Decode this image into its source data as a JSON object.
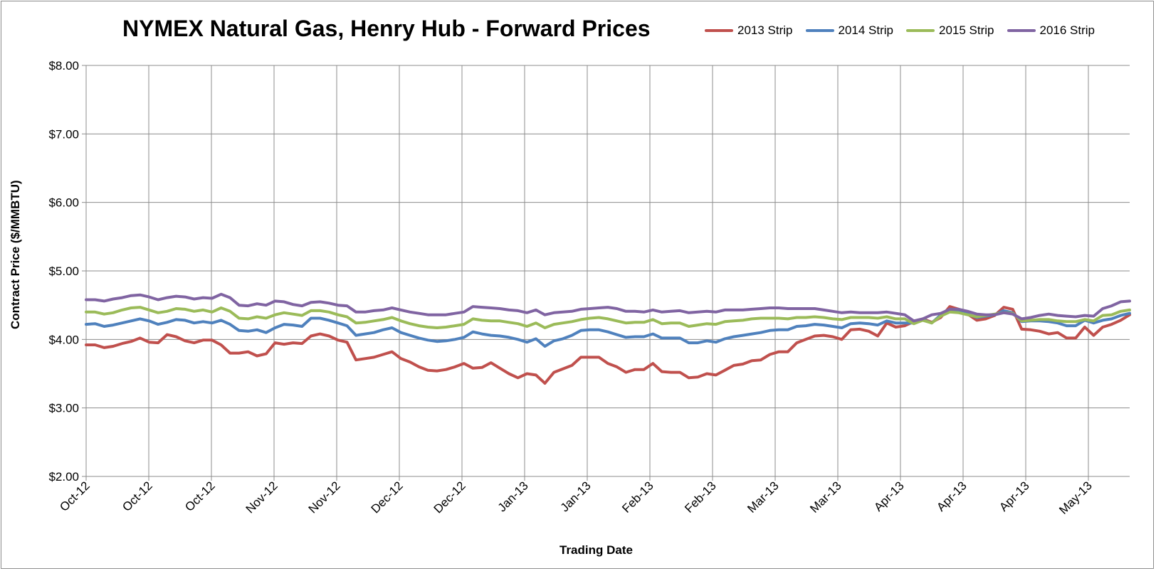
{
  "chart_data": {
    "type": "line",
    "title": "NYMEX Natural Gas, Henry Hub - Forward Prices",
    "xlabel": "Trading Date",
    "ylabel": "Contract Price ($/MMBTU)",
    "ylim": [
      2.0,
      8.0
    ],
    "yticks": [
      "$2.00",
      "$3.00",
      "$4.00",
      "$5.00",
      "$6.00",
      "$7.00",
      "$8.00"
    ],
    "xticks": [
      "Oct-12",
      "Oct-12",
      "Oct-12",
      "Nov-12",
      "Nov-12",
      "Dec-12",
      "Dec-12",
      "Jan-13",
      "Jan-13",
      "Feb-13",
      "Feb-13",
      "Mar-13",
      "Mar-13",
      "Apr-13",
      "Apr-13",
      "Apr-13",
      "May-13"
    ],
    "grid": true,
    "legend_position": "top-right",
    "series": [
      {
        "name": "2013 Strip",
        "color": "#c0504d",
        "values": [
          3.92,
          3.92,
          3.88,
          3.9,
          3.94,
          3.97,
          4.02,
          3.96,
          3.95,
          4.07,
          4.04,
          3.98,
          3.95,
          3.99,
          3.99,
          3.92,
          3.8,
          3.8,
          3.82,
          3.76,
          3.79,
          3.95,
          3.93,
          3.95,
          3.94,
          4.05,
          4.08,
          4.05,
          3.99,
          3.96,
          3.7,
          3.72,
          3.74,
          3.78,
          3.82,
          3.72,
          3.67,
          3.6,
          3.55,
          3.54,
          3.56,
          3.6,
          3.65,
          3.58,
          3.59,
          3.66,
          3.58,
          3.5,
          3.44,
          3.5,
          3.48,
          3.36,
          3.52,
          3.57,
          3.62,
          3.74,
          3.74,
          3.74,
          3.65,
          3.6,
          3.52,
          3.56,
          3.56,
          3.65,
          3.53,
          3.52,
          3.52,
          3.44,
          3.45,
          3.5,
          3.48,
          3.55,
          3.62,
          3.64,
          3.69,
          3.7,
          3.78,
          3.82,
          3.82,
          3.95,
          4.0,
          4.05,
          4.06,
          4.04,
          4.0,
          4.14,
          4.15,
          4.12,
          4.05,
          4.24,
          4.18,
          4.2,
          4.26,
          4.3,
          4.25,
          4.32,
          4.48,
          4.44,
          4.37,
          4.28,
          4.3,
          4.35,
          4.47,
          4.44,
          4.15,
          4.14,
          4.12,
          4.08,
          4.1,
          4.02,
          4.02,
          4.18,
          4.06,
          4.18,
          4.22,
          4.28,
          4.36
        ]
      },
      {
        "name": "2014 Strip",
        "color": "#4f81bd",
        "values": [
          4.22,
          4.23,
          4.19,
          4.21,
          4.24,
          4.27,
          4.3,
          4.27,
          4.22,
          4.25,
          4.29,
          4.28,
          4.24,
          4.26,
          4.24,
          4.28,
          4.22,
          4.13,
          4.12,
          4.14,
          4.1,
          4.17,
          4.22,
          4.21,
          4.19,
          4.31,
          4.31,
          4.28,
          4.24,
          4.2,
          4.06,
          4.08,
          4.1,
          4.14,
          4.17,
          4.1,
          4.06,
          4.02,
          3.99,
          3.97,
          3.98,
          4.0,
          4.03,
          4.11,
          4.08,
          4.06,
          4.05,
          4.03,
          4.0,
          3.96,
          4.01,
          3.9,
          3.98,
          4.01,
          4.06,
          4.13,
          4.14,
          4.14,
          4.11,
          4.07,
          4.03,
          4.04,
          4.04,
          4.08,
          4.02,
          4.02,
          4.02,
          3.95,
          3.95,
          3.98,
          3.96,
          4.01,
          4.04,
          4.06,
          4.08,
          4.1,
          4.13,
          4.14,
          4.14,
          4.19,
          4.2,
          4.22,
          4.21,
          4.19,
          4.17,
          4.23,
          4.24,
          4.23,
          4.21,
          4.27,
          4.24,
          4.24,
          4.24,
          4.29,
          4.24,
          4.36,
          4.44,
          4.41,
          4.37,
          4.32,
          4.34,
          4.36,
          4.42,
          4.39,
          4.26,
          4.27,
          4.27,
          4.26,
          4.24,
          4.2,
          4.2,
          4.28,
          4.24,
          4.28,
          4.3,
          4.35,
          4.38
        ]
      },
      {
        "name": "2015 Strip",
        "color": "#9bbb59",
        "values": [
          4.4,
          4.4,
          4.37,
          4.39,
          4.43,
          4.46,
          4.47,
          4.43,
          4.39,
          4.41,
          4.45,
          4.44,
          4.41,
          4.43,
          4.4,
          4.46,
          4.41,
          4.31,
          4.3,
          4.33,
          4.31,
          4.36,
          4.39,
          4.37,
          4.35,
          4.42,
          4.42,
          4.4,
          4.36,
          4.33,
          4.24,
          4.25,
          4.27,
          4.29,
          4.32,
          4.27,
          4.23,
          4.2,
          4.18,
          4.17,
          4.18,
          4.2,
          4.22,
          4.3,
          4.28,
          4.27,
          4.27,
          4.25,
          4.23,
          4.19,
          4.24,
          4.17,
          4.22,
          4.24,
          4.26,
          4.29,
          4.31,
          4.32,
          4.3,
          4.27,
          4.24,
          4.25,
          4.25,
          4.29,
          4.23,
          4.24,
          4.24,
          4.19,
          4.21,
          4.23,
          4.22,
          4.26,
          4.27,
          4.28,
          4.3,
          4.31,
          4.31,
          4.31,
          4.3,
          4.32,
          4.32,
          4.33,
          4.32,
          4.3,
          4.29,
          4.32,
          4.32,
          4.32,
          4.31,
          4.33,
          4.3,
          4.3,
          4.23,
          4.28,
          4.24,
          4.34,
          4.4,
          4.39,
          4.36,
          4.33,
          4.35,
          4.37,
          4.39,
          4.38,
          4.27,
          4.28,
          4.29,
          4.29,
          4.27,
          4.26,
          4.26,
          4.29,
          4.27,
          4.35,
          4.36,
          4.41,
          4.43
        ]
      },
      {
        "name": "2016 Strip",
        "color": "#8064a2",
        "values": [
          4.58,
          4.58,
          4.56,
          4.59,
          4.61,
          4.64,
          4.65,
          4.62,
          4.58,
          4.61,
          4.63,
          4.62,
          4.59,
          4.61,
          4.6,
          4.66,
          4.61,
          4.5,
          4.49,
          4.52,
          4.5,
          4.56,
          4.55,
          4.51,
          4.49,
          4.54,
          4.55,
          4.53,
          4.5,
          4.49,
          4.4,
          4.4,
          4.42,
          4.43,
          4.46,
          4.43,
          4.4,
          4.38,
          4.36,
          4.36,
          4.36,
          4.38,
          4.4,
          4.48,
          4.47,
          4.46,
          4.45,
          4.43,
          4.42,
          4.39,
          4.43,
          4.36,
          4.39,
          4.4,
          4.41,
          4.44,
          4.45,
          4.46,
          4.47,
          4.45,
          4.41,
          4.41,
          4.4,
          4.43,
          4.4,
          4.41,
          4.42,
          4.39,
          4.4,
          4.41,
          4.4,
          4.43,
          4.43,
          4.43,
          4.44,
          4.45,
          4.46,
          4.46,
          4.45,
          4.45,
          4.45,
          4.45,
          4.43,
          4.41,
          4.39,
          4.4,
          4.39,
          4.39,
          4.39,
          4.4,
          4.38,
          4.36,
          4.27,
          4.3,
          4.36,
          4.38,
          4.44,
          4.44,
          4.41,
          4.37,
          4.36,
          4.36,
          4.39,
          4.37,
          4.3,
          4.32,
          4.35,
          4.37,
          4.35,
          4.34,
          4.33,
          4.35,
          4.34,
          4.45,
          4.49,
          4.55,
          4.56
        ]
      }
    ]
  }
}
